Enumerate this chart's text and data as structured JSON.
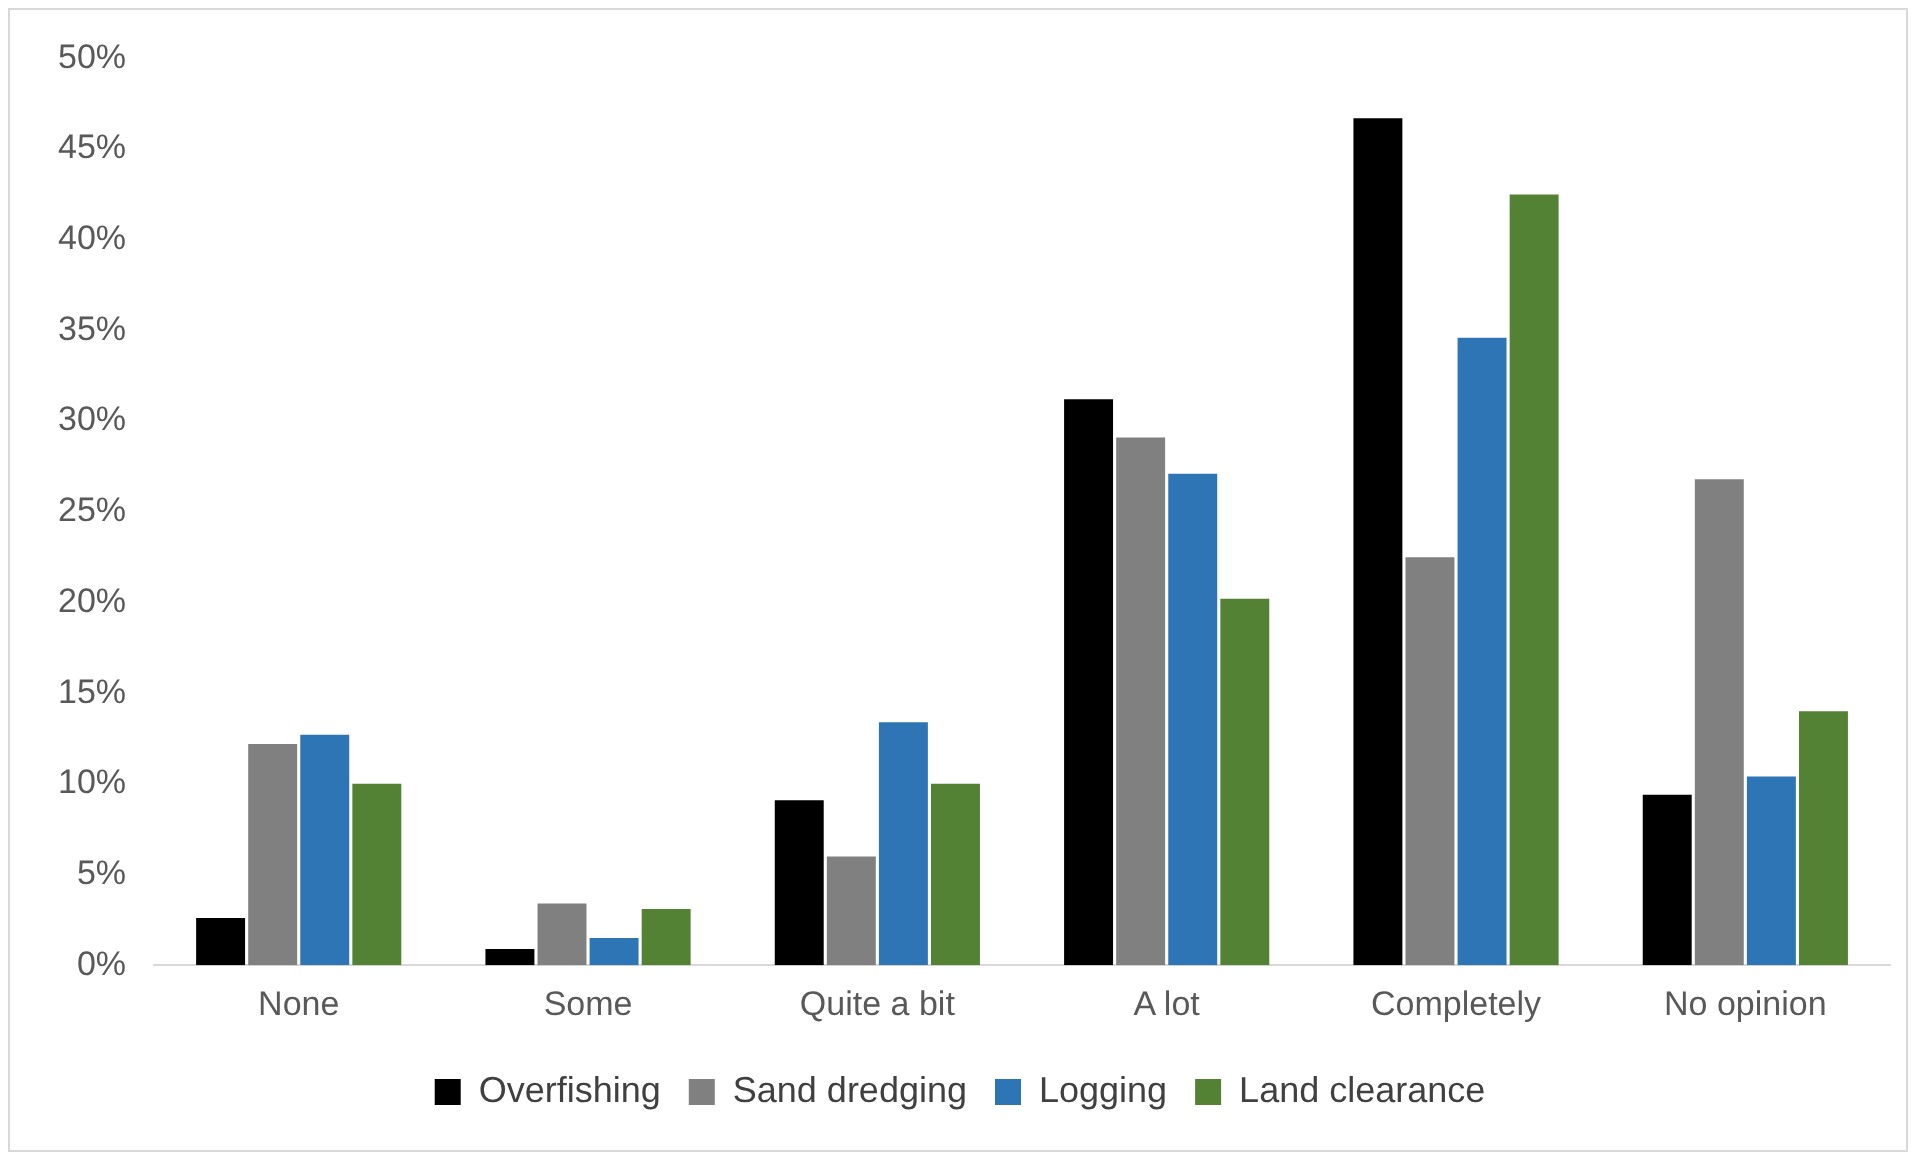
{
  "chart_data": {
    "type": "bar",
    "categories": [
      "None",
      "Some",
      "Quite a bit",
      "A lot",
      "Completely",
      "No opinion"
    ],
    "series": [
      {
        "name": "Overfishing",
        "color": "#000000",
        "values": [
          2.6,
          0.9,
          9.1,
          31.2,
          46.7,
          9.4
        ]
      },
      {
        "name": "Sand dredging",
        "color": "#808080",
        "values": [
          12.2,
          3.4,
          6.0,
          29.1,
          22.5,
          26.8
        ]
      },
      {
        "name": "Logging",
        "color": "#2e75b6",
        "values": [
          12.7,
          1.5,
          13.4,
          27.1,
          34.6,
          10.4
        ]
      },
      {
        "name": "Land clearance",
        "color": "#548235",
        "values": [
          10.0,
          3.1,
          10.0,
          20.2,
          42.5,
          14.0
        ]
      }
    ],
    "ylim": [
      0,
      50
    ],
    "yticks": [
      {
        "value": 0,
        "label": "0%"
      },
      {
        "value": 5,
        "label": "5%"
      },
      {
        "value": 10,
        "label": "10%"
      },
      {
        "value": 15,
        "label": "15%"
      },
      {
        "value": 20,
        "label": "20%"
      },
      {
        "value": 25,
        "label": "25%"
      },
      {
        "value": 30,
        "label": "30%"
      },
      {
        "value": 35,
        "label": "35%"
      },
      {
        "value": 40,
        "label": "40%"
      },
      {
        "value": 45,
        "label": "45%"
      },
      {
        "value": 50,
        "label": "50%"
      }
    ],
    "grid": false,
    "legend": "bottom"
  }
}
